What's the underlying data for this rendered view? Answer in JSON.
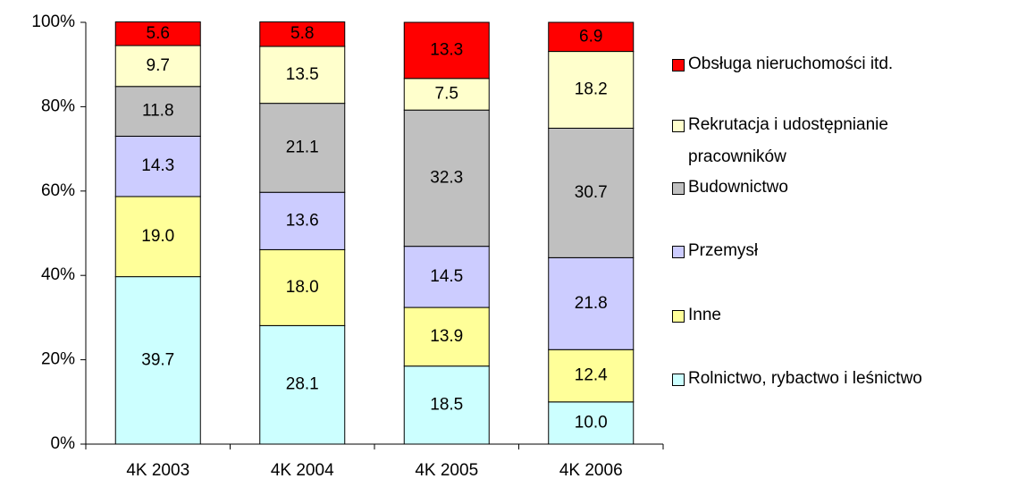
{
  "chart_data": {
    "type": "bar",
    "stacked": true,
    "categories": [
      "4K 2003",
      "4K 2004",
      "4K 2005",
      "4K 2006"
    ],
    "series": [
      {
        "name": "Rolnictwo, rybactwo i leśnictwo",
        "color": "#ccffff",
        "values": [
          39.7,
          28.1,
          18.5,
          10
        ],
        "value_labels": [
          "39.7",
          "28.1",
          "18.5",
          "10.0"
        ]
      },
      {
        "name": "Inne",
        "color": "#ffff99",
        "values": [
          19,
          18,
          13.9,
          12.4
        ],
        "value_labels": [
          "19.0",
          "18.0",
          "13.9",
          "12.4"
        ]
      },
      {
        "name": "Przemysł",
        "color": "#ccccff",
        "values": [
          14.3,
          13.6,
          14.5,
          21.8
        ]
      },
      {
        "name": "Budownictwo",
        "color": "#c0c0c0",
        "values": [
          11.8,
          21.1,
          32.3,
          30.7
        ]
      },
      {
        "name": "Rekrutacja i udostępnianie pracowników",
        "color": "#ffffcc",
        "values": [
          9.7,
          13.5,
          7.5,
          18.2
        ]
      },
      {
        "name": "Obsługa nieruchomości itd.",
        "color": "#ff0000",
        "values": [
          5.6,
          5.8,
          13.3,
          6.9
        ]
      }
    ],
    "ylim": [
      0,
      100
    ],
    "yticks": [
      {
        "value": 0,
        "label": "0%"
      },
      {
        "value": 20,
        "label": "20%"
      },
      {
        "value": 40,
        "label": "40%"
      },
      {
        "value": 60,
        "label": "60%"
      },
      {
        "value": 80,
        "label": "80%"
      },
      {
        "value": 100,
        "label": "100%"
      }
    ],
    "grid": false,
    "legend": "right"
  }
}
